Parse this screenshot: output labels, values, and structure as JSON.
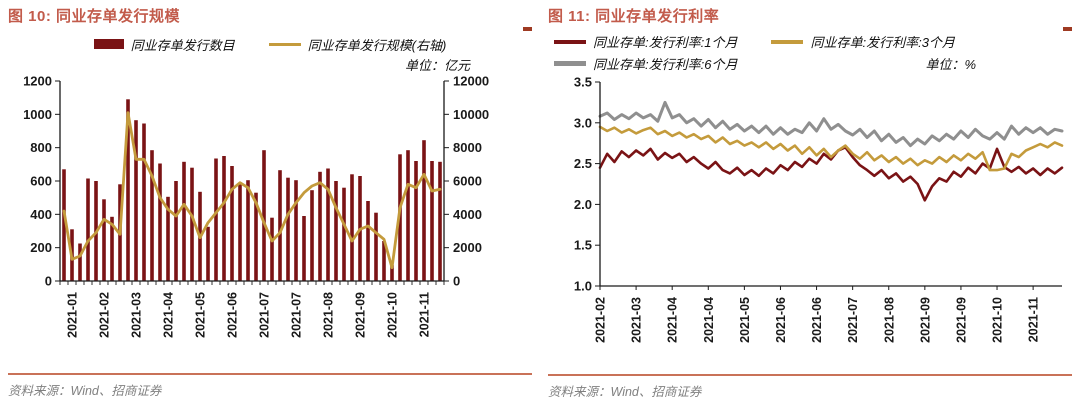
{
  "fig10": {
    "title": "图 10:  同业存单发行规模",
    "unit_label": "单位：亿元",
    "source": "资料来源：Wind、招商证券",
    "legend": [
      {
        "label": "同业存单发行数目",
        "swatch": "bar",
        "color": "#7A1315"
      },
      {
        "label": "同业存单发行规模(右轴)",
        "swatch": "line",
        "color": "#C49B3C"
      }
    ]
  },
  "fig11": {
    "title": "图 11:  同业存单发行利率",
    "unit_label": "单位：%",
    "source": "资料来源：Wind、招商证券",
    "legend": [
      {
        "label": "同业存单:发行利率:1个月",
        "swatch": "line",
        "color": "#7A1315"
      },
      {
        "label": "同业存单:发行利率:3个月",
        "swatch": "line",
        "color": "#C49B3C"
      },
      {
        "label": "同业存单:发行利率:6个月",
        "swatch": "line",
        "color": "#8F8F8F"
      }
    ]
  },
  "colors": {
    "maroon": "#7A1315",
    "gold": "#C49B3C",
    "gray": "#8F8F8F",
    "brick_title": "#C25B4B",
    "rule": "#C97258",
    "source_text": "#7F7F7F"
  },
  "chart_data": [
    {
      "type": "bar",
      "title": "同业存单发行规模",
      "unit": "亿元",
      "x_tick_labels": [
        "2021-01",
        "2021-02",
        "2021-03",
        "2021-04",
        "2021-05",
        "2021-06",
        "2021-07",
        "2021-07",
        "2021-08",
        "2021-09",
        "2021-10",
        "2021-11"
      ],
      "label_indices": [
        1,
        5,
        9,
        13,
        17,
        21,
        25,
        29,
        33,
        37,
        41,
        45
      ],
      "y_left": {
        "min": 0,
        "max": 1200,
        "step": 200,
        "ticks": [
          "0",
          "200",
          "400",
          "600",
          "800",
          "1000",
          "1200"
        ]
      },
      "y_right": {
        "min": 0,
        "max": 12000,
        "step": 2000,
        "ticks": [
          "0",
          "2000",
          "4000",
          "6000",
          "8000",
          "10000",
          "12000"
        ]
      },
      "grid": false,
      "legend_position": "top",
      "series": [
        {
          "name": "同业存单发行数目",
          "type": "bar",
          "axis": "left",
          "color": "#7A1315",
          "values": [
            670,
            310,
            225,
            615,
            600,
            490,
            385,
            580,
            1090,
            965,
            945,
            785,
            705,
            505,
            600,
            715,
            680,
            535,
            325,
            735,
            750,
            690,
            580,
            605,
            530,
            785,
            380,
            665,
            620,
            605,
            390,
            545,
            655,
            675,
            600,
            560,
            640,
            630,
            480,
            410,
            240,
            95,
            760,
            785,
            720,
            845,
            720,
            715
          ]
        },
        {
          "name": "同业存单发行规模(右轴)",
          "type": "line",
          "axis": "right",
          "color": "#C49B3C",
          "values": [
            4200,
            1300,
            1500,
            2400,
            2900,
            3700,
            3400,
            2800,
            10100,
            7300,
            7300,
            6300,
            5000,
            4300,
            3900,
            4600,
            3900,
            2600,
            3500,
            4100,
            4700,
            5500,
            5900,
            5600,
            4700,
            3500,
            2400,
            2900,
            4000,
            4700,
            5300,
            5700,
            5900,
            5500,
            4400,
            3400,
            2400,
            3100,
            3300,
            2900,
            2500,
            800,
            4400,
            5800,
            5600,
            6400,
            5400,
            5500
          ]
        }
      ]
    },
    {
      "type": "line",
      "title": "同业存单发行利率",
      "unit": "%",
      "x_tick_labels": [
        "2021-02",
        "2021-03",
        "2021-04",
        "2021-04",
        "2021-05",
        "2021-06",
        "2021-06",
        "2021-07",
        "2021-08",
        "2021-09",
        "2021-09",
        "2021-10",
        "2021-11"
      ],
      "label_indices": [
        0,
        5,
        10,
        15,
        20,
        25,
        30,
        35,
        40,
        45,
        50,
        55,
        60
      ],
      "y": {
        "min": 1.0,
        "max": 3.5,
        "step": 0.5,
        "ticks": [
          "1.0",
          "1.5",
          "2.0",
          "2.5",
          "3.0",
          "3.5"
        ]
      },
      "grid": false,
      "legend_position": "top",
      "series": [
        {
          "name": "同业存单:发行利率:1个月",
          "color": "#7A1315",
          "values": [
            2.45,
            2.62,
            2.52,
            2.65,
            2.58,
            2.66,
            2.6,
            2.68,
            2.55,
            2.63,
            2.57,
            2.62,
            2.52,
            2.58,
            2.5,
            2.44,
            2.52,
            2.42,
            2.38,
            2.45,
            2.36,
            2.42,
            2.35,
            2.44,
            2.38,
            2.48,
            2.42,
            2.52,
            2.46,
            2.56,
            2.5,
            2.62,
            2.55,
            2.66,
            2.7,
            2.58,
            2.48,
            2.42,
            2.35,
            2.42,
            2.32,
            2.38,
            2.28,
            2.34,
            2.25,
            2.05,
            2.22,
            2.32,
            2.28,
            2.4,
            2.34,
            2.45,
            2.38,
            2.5,
            2.44,
            2.68,
            2.46,
            2.4,
            2.46,
            2.38,
            2.44,
            2.36,
            2.44,
            2.38,
            2.45
          ]
        },
        {
          "name": "同业存单:发行利率:3个月",
          "color": "#C49B3C",
          "values": [
            2.95,
            2.9,
            2.94,
            2.88,
            2.92,
            2.87,
            2.91,
            2.94,
            2.86,
            2.9,
            2.84,
            2.88,
            2.82,
            2.86,
            2.8,
            2.84,
            2.76,
            2.82,
            2.74,
            2.78,
            2.72,
            2.76,
            2.7,
            2.76,
            2.68,
            2.74,
            2.66,
            2.72,
            2.62,
            2.7,
            2.6,
            2.68,
            2.58,
            2.66,
            2.72,
            2.62,
            2.56,
            2.64,
            2.54,
            2.6,
            2.52,
            2.58,
            2.5,
            2.56,
            2.48,
            2.54,
            2.5,
            2.58,
            2.52,
            2.6,
            2.54,
            2.62,
            2.56,
            2.64,
            2.42,
            2.42,
            2.44,
            2.62,
            2.58,
            2.66,
            2.7,
            2.74,
            2.7,
            2.76,
            2.72
          ]
        },
        {
          "name": "同业存单:发行利率:6个月",
          "color": "#8F8F8F",
          "values": [
            3.08,
            3.12,
            3.04,
            3.1,
            3.05,
            3.12,
            3.06,
            3.1,
            3.02,
            3.25,
            3.06,
            3.1,
            3.0,
            3.05,
            2.96,
            3.04,
            2.94,
            3.02,
            2.92,
            2.98,
            2.9,
            2.96,
            2.88,
            2.96,
            2.86,
            2.94,
            2.86,
            2.92,
            2.88,
            3.0,
            2.9,
            3.05,
            2.92,
            2.98,
            2.9,
            2.85,
            2.92,
            2.82,
            2.9,
            2.78,
            2.86,
            2.76,
            2.82,
            2.72,
            2.8,
            2.74,
            2.84,
            2.78,
            2.86,
            2.8,
            2.9,
            2.82,
            2.92,
            2.84,
            2.8,
            2.88,
            2.8,
            2.96,
            2.86,
            2.94,
            2.88,
            2.94,
            2.86,
            2.92,
            2.9
          ]
        }
      ]
    }
  ]
}
